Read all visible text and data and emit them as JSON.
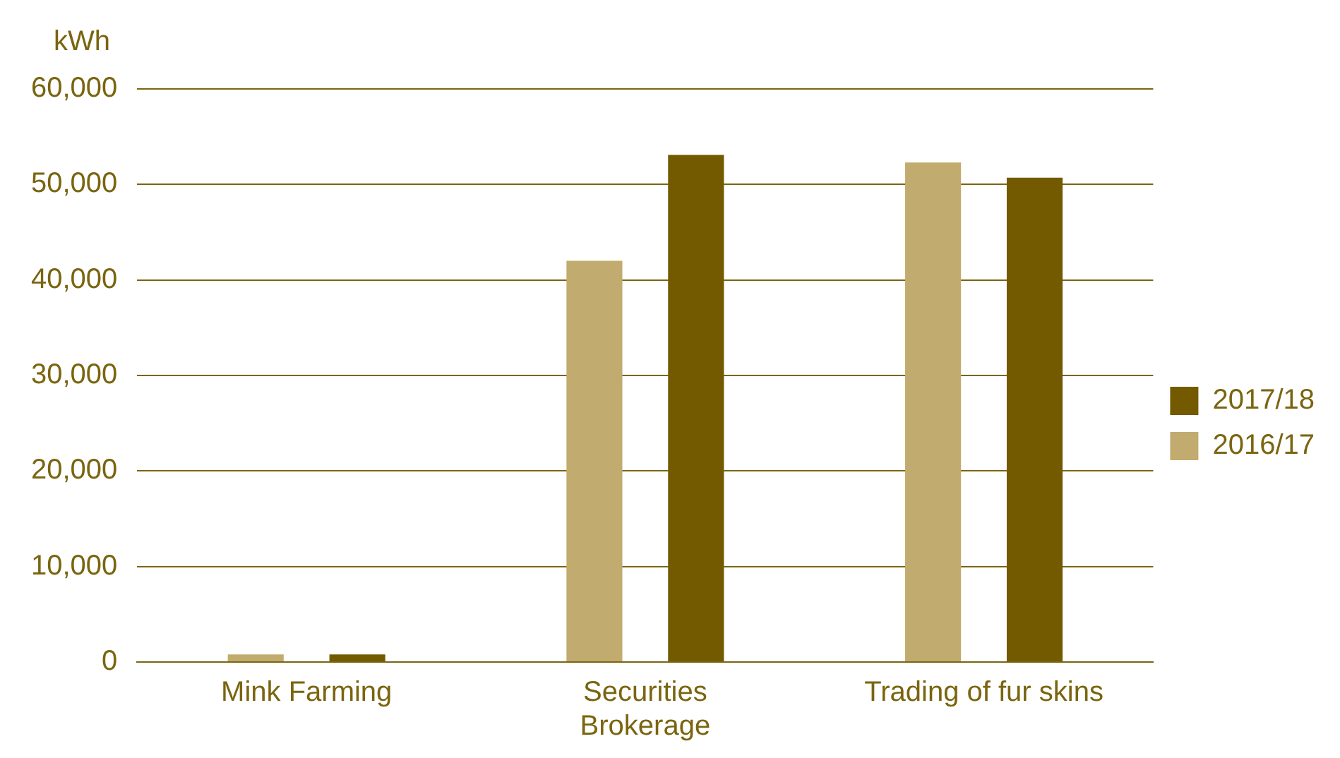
{
  "chart_data": {
    "type": "bar",
    "ylabel": "kWh",
    "categories": [
      "Mink Farming",
      "Securities Brokerage",
      "Trading of fur skins"
    ],
    "series": [
      {
        "name": "2016/17",
        "color": "#c2ab6e",
        "values": [
          800,
          42000,
          52300
        ]
      },
      {
        "name": "2017/18",
        "color": "#735a00",
        "values": [
          800,
          53100,
          50700
        ]
      }
    ],
    "ylim": [
      0,
      60000
    ],
    "yticks": [
      0,
      {
        "value": 10000,
        "label": "10,000"
      },
      {
        "value": 20000,
        "label": "20,000"
      },
      {
        "value": 30000,
        "label": "30,000"
      },
      {
        "value": 40000,
        "label": "40,000"
      },
      {
        "value": 50000,
        "label": "50,000"
      },
      {
        "value": 60000,
        "label": "60,000"
      }
    ],
    "grid": "y",
    "legend": "right"
  }
}
